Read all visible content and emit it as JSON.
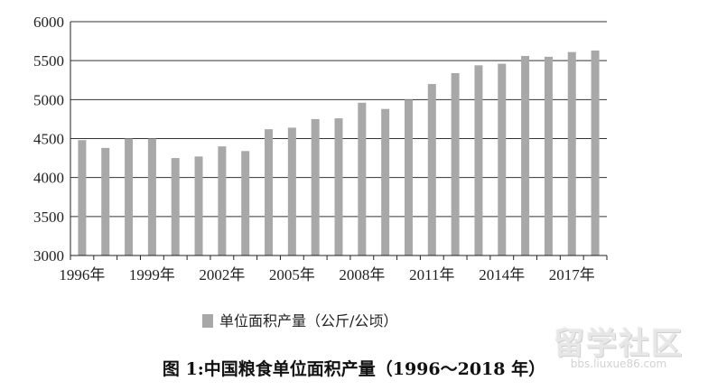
{
  "chart_data": {
    "type": "bar",
    "title": "",
    "xlabel": "",
    "ylabel": "",
    "ylim": [
      3000,
      6000
    ],
    "yticks": [
      3000,
      3500,
      4000,
      4500,
      5000,
      5500,
      6000
    ],
    "grid": true,
    "legend_position": "bottom",
    "bar_color": "#a8a8a8",
    "categories": [
      "1996",
      "1997",
      "1998",
      "1999",
      "2000",
      "2001",
      "2002",
      "2003",
      "2004",
      "2005",
      "2006",
      "2007",
      "2008",
      "2009",
      "2010",
      "2011",
      "2012",
      "2013",
      "2014",
      "2015",
      "2016",
      "2017",
      "2018"
    ],
    "x_tick_labels": [
      "1996年",
      "1999年",
      "2002年",
      "2005年",
      "2008年",
      "2011年",
      "2014年",
      "2017年"
    ],
    "x_tick_every": 3,
    "series": [
      {
        "name": "单位面积产量（公斤/公顷）",
        "values": [
          4480,
          4380,
          4500,
          4500,
          4250,
          4270,
          4400,
          4340,
          4620,
          4640,
          4750,
          4760,
          4960,
          4880,
          5000,
          5200,
          5340,
          5440,
          5460,
          5560,
          5550,
          5610,
          5630
        ]
      }
    ]
  },
  "caption": "图 1:中国粮食单位面积产量（1996～2018 年）",
  "watermark": {
    "logo": "留学社区",
    "url": "bbs.liuxue86.com"
  }
}
